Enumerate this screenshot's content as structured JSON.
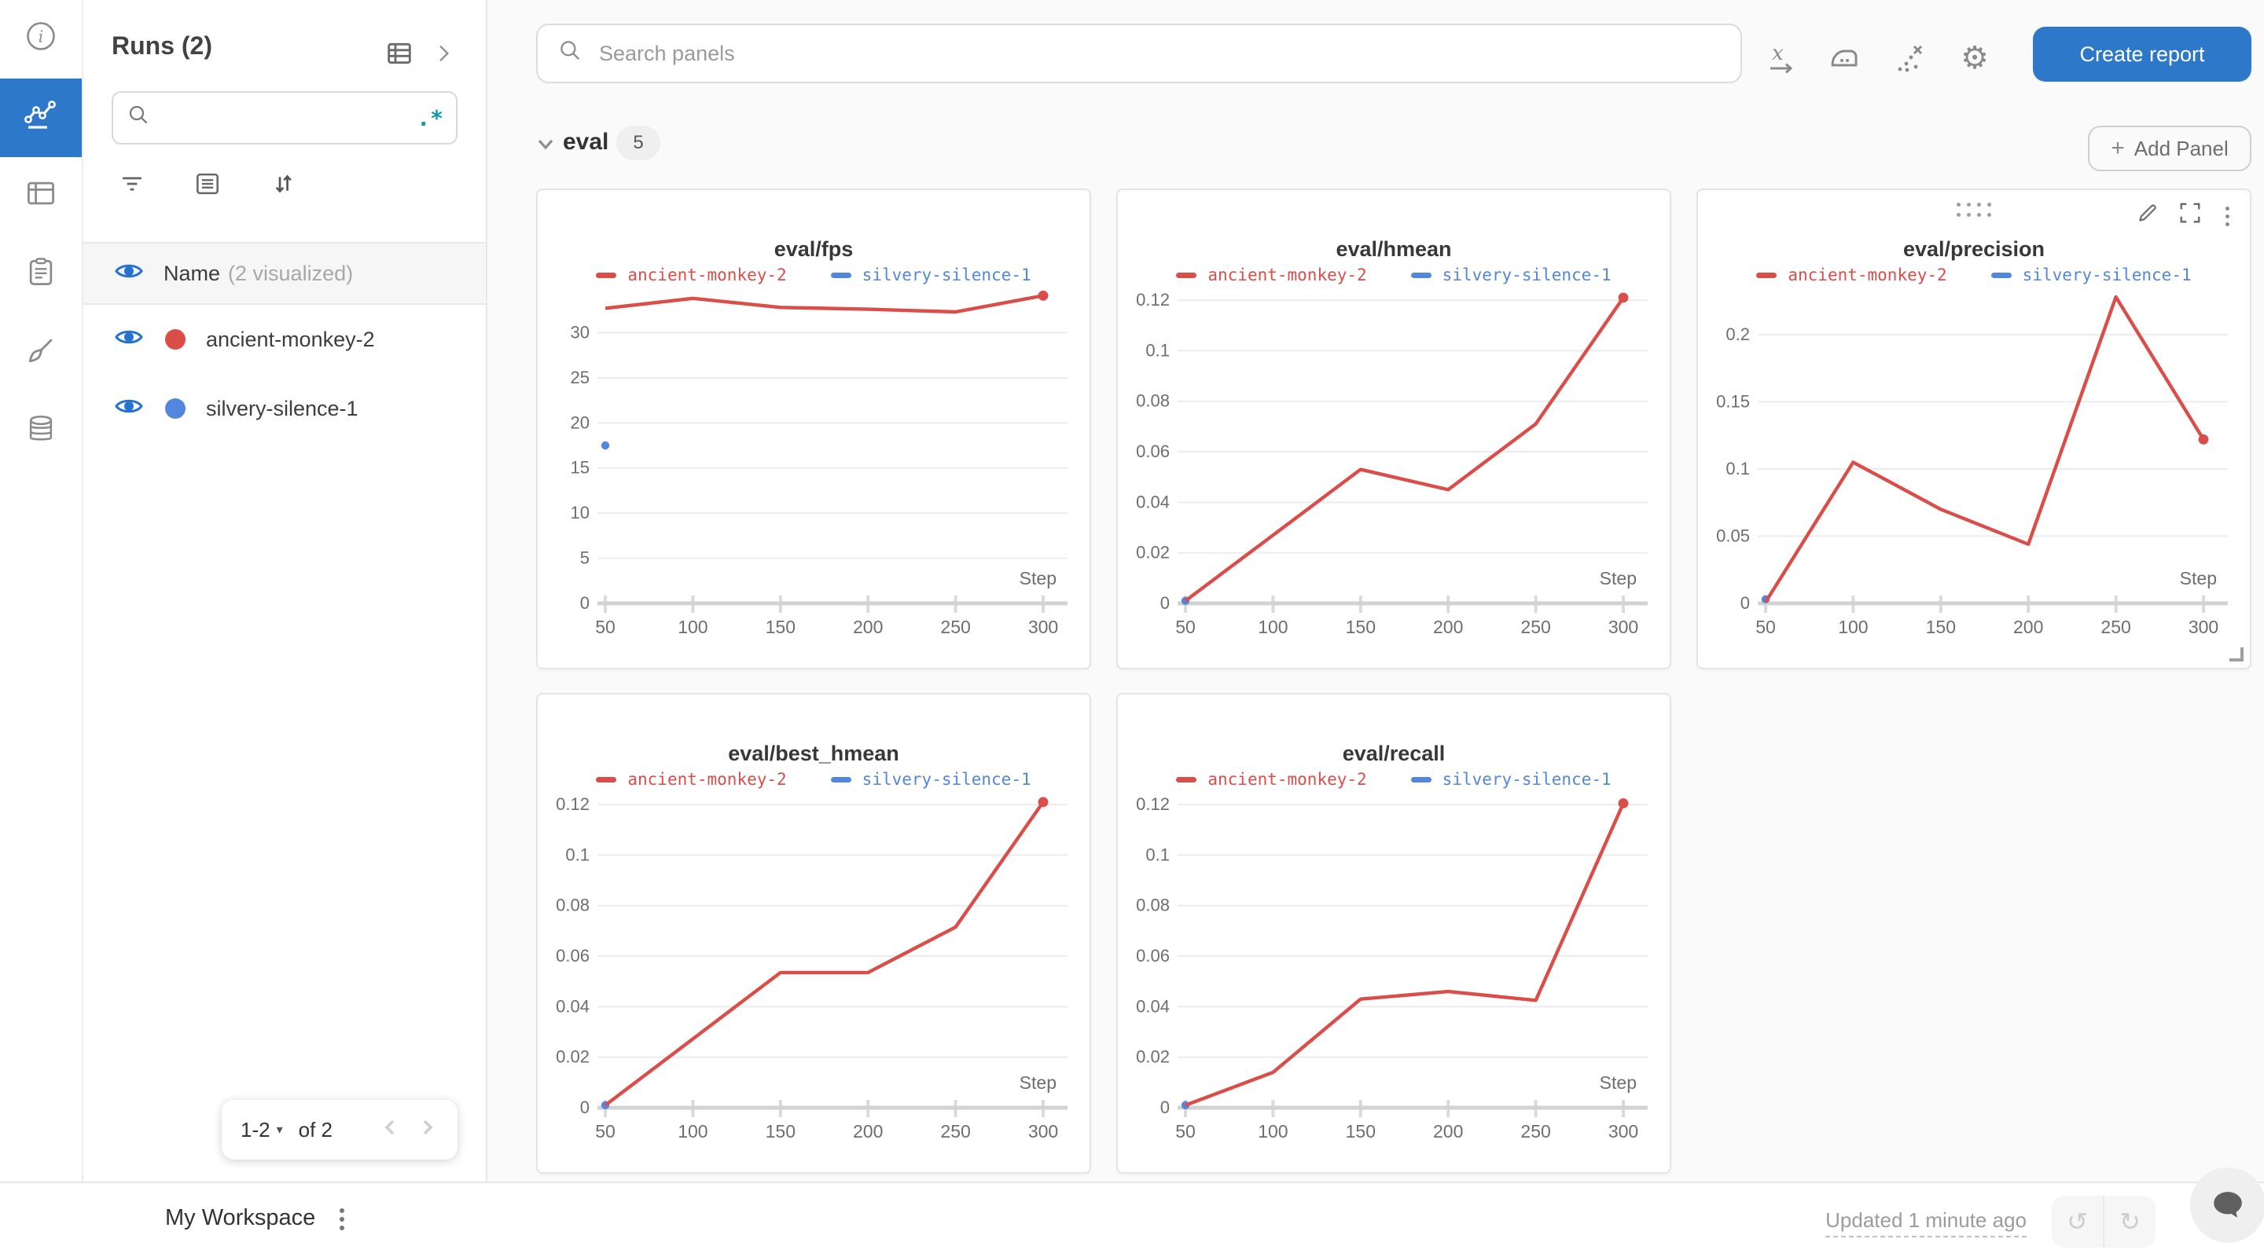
{
  "colors": {
    "primary_blue": "#2e78c9",
    "run_red": "#DA4D49",
    "run_blue": "#5387DD",
    "eye_blue": "#2573d1",
    "regex_teal": "#0e9aa7",
    "grid_line": "#ececec",
    "axis_line": "#d2d2d2"
  },
  "rail": {
    "items": [
      "info",
      "workspace-charts",
      "table",
      "logs",
      "customize",
      "artifacts"
    ],
    "active_item": "workspace-charts"
  },
  "runs_panel": {
    "title": "Runs (2)",
    "search_value": "",
    "regex_label": ".*",
    "name_column_label": "Name",
    "visualized_label": "(2 visualized)",
    "runs": [
      {
        "name": "ancient-monkey-2",
        "color": "#DA4D49",
        "visible": true
      },
      {
        "name": "silvery-silence-1",
        "color": "#5387DD",
        "visible": true
      }
    ],
    "pagination": {
      "page_range": "1-2",
      "caret": "▾",
      "total_label": "of 2"
    }
  },
  "topbar": {
    "search_placeholder": "Search panels",
    "icons": [
      "x-axis",
      "smoothing",
      "outlier-points",
      "settings"
    ],
    "create_report_label": "Create report"
  },
  "section": {
    "name": "eval",
    "panel_count": "5",
    "add_panel_label": "Add Panel",
    "add_panel_plus": "+"
  },
  "footer": {
    "workspace_label": "My Workspace",
    "updated_label": "Updated 1 minute ago",
    "undo_glyph": "↺",
    "redo_glyph": "↻"
  },
  "chart_data": [
    {
      "type": "line",
      "title": "eval/fps",
      "xlabel": "Step",
      "x_ticks": [
        50,
        100,
        150,
        200,
        250,
        300
      ],
      "y_ticks": [
        0,
        5,
        10,
        15,
        20,
        25,
        30
      ],
      "ylim": [
        0,
        35
      ],
      "xlim": [
        50,
        300
      ],
      "grid": true,
      "legend_position": "top",
      "hover_controls": false,
      "series": [
        {
          "name": "ancient-monkey-2",
          "color": "#DA4D49",
          "x": [
            50,
            100,
            150,
            200,
            250,
            300
          ],
          "y": [
            32.7,
            33.8,
            32.8,
            32.6,
            32.3,
            34.1
          ]
        },
        {
          "name": "silvery-silence-1",
          "color": "#5387DD",
          "x": [
            50
          ],
          "y": [
            17.5
          ]
        }
      ]
    },
    {
      "type": "line",
      "title": "eval/hmean",
      "xlabel": "Step",
      "x_ticks": [
        50,
        100,
        150,
        200,
        250,
        300
      ],
      "y_ticks": [
        0,
        0.02,
        0.04,
        0.06,
        0.08,
        0.1,
        0.12
      ],
      "ylim": [
        0,
        0.125
      ],
      "xlim": [
        50,
        300
      ],
      "grid": true,
      "legend_position": "top",
      "hover_controls": false,
      "series": [
        {
          "name": "ancient-monkey-2",
          "color": "#DA4D49",
          "x": [
            50,
            150,
            200,
            250,
            300
          ],
          "y": [
            0.001,
            0.053,
            0.045,
            0.071,
            0.121
          ]
        },
        {
          "name": "silvery-silence-1",
          "color": "#5387DD",
          "x": [
            50
          ],
          "y": [
            0.001
          ]
        }
      ]
    },
    {
      "type": "line",
      "title": "eval/precision",
      "xlabel": "Step",
      "x_ticks": [
        50,
        100,
        150,
        200,
        250,
        300
      ],
      "y_ticks": [
        0,
        0.05,
        0.1,
        0.15,
        0.2
      ],
      "ylim": [
        0,
        0.235
      ],
      "xlim": [
        50,
        300
      ],
      "grid": true,
      "legend_position": "top",
      "hover_controls": true,
      "series": [
        {
          "name": "ancient-monkey-2",
          "color": "#DA4D49",
          "x": [
            50,
            100,
            150,
            200,
            250,
            300
          ],
          "y": [
            0.001,
            0.105,
            0.07,
            0.044,
            0.228,
            0.122
          ]
        },
        {
          "name": "silvery-silence-1",
          "color": "#5387DD",
          "x": [
            50
          ],
          "y": [
            0.003
          ]
        }
      ]
    },
    {
      "type": "line",
      "title": "eval/best_hmean",
      "xlabel": "Step",
      "x_ticks": [
        50,
        100,
        150,
        200,
        250,
        300
      ],
      "y_ticks": [
        0,
        0.02,
        0.04,
        0.06,
        0.08,
        0.1,
        0.12
      ],
      "ylim": [
        0,
        0.125
      ],
      "xlim": [
        50,
        300
      ],
      "grid": true,
      "legend_position": "top",
      "hover_controls": false,
      "series": [
        {
          "name": "ancient-monkey-2",
          "color": "#DA4D49",
          "x": [
            50,
            150,
            200,
            250,
            300
          ],
          "y": [
            0.001,
            0.0535,
            0.0535,
            0.0715,
            0.121
          ]
        },
        {
          "name": "silvery-silence-1",
          "color": "#5387DD",
          "x": [
            50
          ],
          "y": [
            0.001
          ]
        }
      ]
    },
    {
      "type": "line",
      "title": "eval/recall",
      "xlabel": "Step",
      "x_ticks": [
        50,
        100,
        150,
        200,
        250,
        300
      ],
      "y_ticks": [
        0,
        0.02,
        0.04,
        0.06,
        0.08,
        0.1,
        0.12
      ],
      "ylim": [
        0,
        0.125
      ],
      "xlim": [
        50,
        300
      ],
      "grid": true,
      "legend_position": "top",
      "hover_controls": false,
      "series": [
        {
          "name": "ancient-monkey-2",
          "color": "#DA4D49",
          "x": [
            50,
            100,
            150,
            200,
            250,
            300
          ],
          "y": [
            0.001,
            0.014,
            0.043,
            0.046,
            0.0425,
            0.1205
          ]
        },
        {
          "name": "silvery-silence-1",
          "color": "#5387DD",
          "x": [
            50
          ],
          "y": [
            0.001
          ]
        }
      ]
    }
  ]
}
